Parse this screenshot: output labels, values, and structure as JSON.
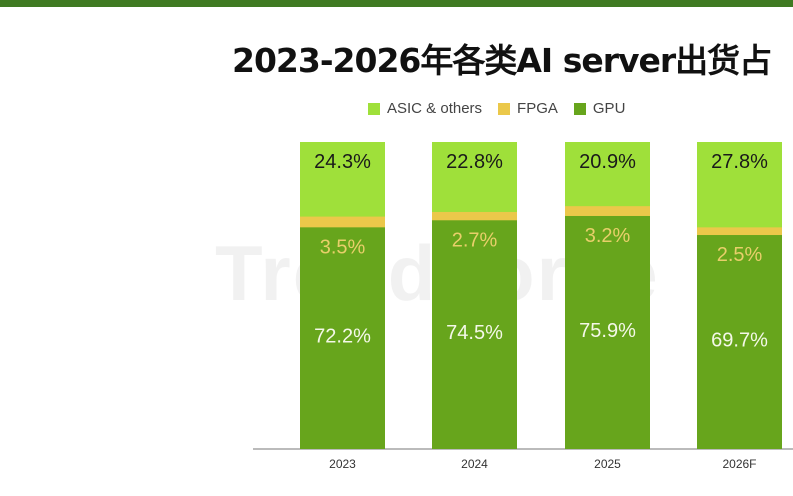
{
  "title": "2023-2026年各类AI server出货占",
  "watermark": "TrendForce",
  "colors": {
    "asic": "#9fe03a",
    "fpga": "#ebc84a",
    "gpu": "#67a51c",
    "fpga_label": "#e8cf6a",
    "gpu_label": "#f4f8e8",
    "asic_label": "#1a1a1a",
    "topbar": "#3f7a22"
  },
  "chart_data": {
    "type": "bar",
    "stacked": true,
    "title": "2023-2026年各类AI server出货占",
    "categories": [
      "2023",
      "2024",
      "2025",
      "2026F"
    ],
    "legend": [
      "ASIC & others",
      "FPGA",
      "GPU"
    ],
    "legend_position": "top",
    "series": [
      {
        "name": "GPU",
        "values": [
          72.2,
          74.5,
          75.9,
          69.7
        ],
        "labels": [
          "72.2%",
          "74.5%",
          "75.9%",
          "69.7%"
        ]
      },
      {
        "name": "FPGA",
        "values": [
          3.5,
          2.7,
          3.2,
          2.5
        ],
        "labels": [
          "3.5%",
          "2.7%",
          "3.2%",
          "2.5%"
        ]
      },
      {
        "name": "ASIC & others",
        "values": [
          24.3,
          22.8,
          20.9,
          27.8
        ],
        "labels": [
          "24.3%",
          "22.8%",
          "20.9%",
          "27.8%"
        ]
      }
    ],
    "ylim": [
      0,
      100
    ],
    "unit": "%"
  }
}
